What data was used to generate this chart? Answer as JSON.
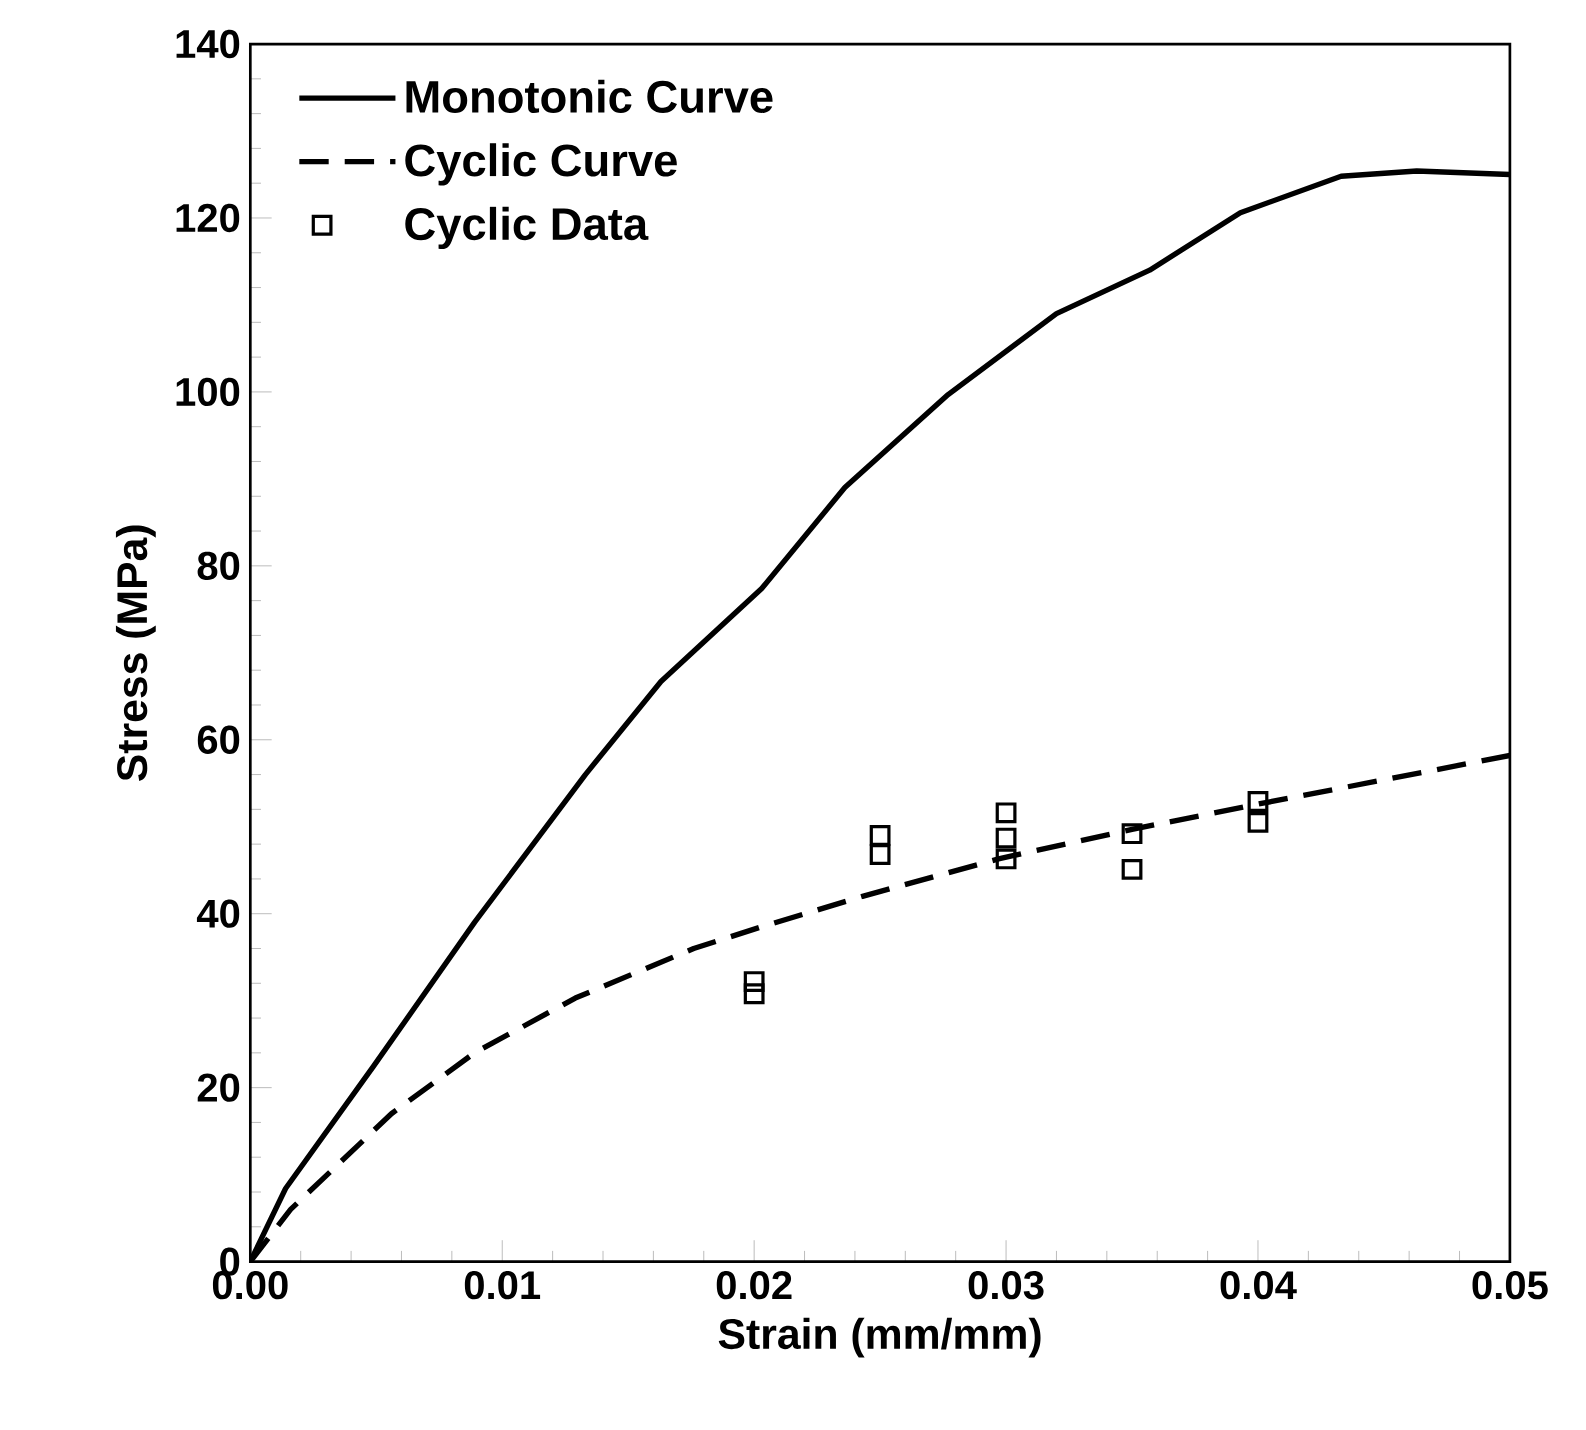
{
  "chart_data": {
    "type": "line",
    "xlabel": "Strain (mm/mm)",
    "ylabel": "Stress (MPa)",
    "xlim": [
      0,
      0.05
    ],
    "ylim": [
      0,
      140
    ],
    "xticks": [
      {
        "value": 0,
        "label": "0.00"
      },
      {
        "value": 0.01,
        "label": "0.01"
      },
      {
        "value": 0.02,
        "label": "0.02"
      },
      {
        "value": 0.03,
        "label": "0.03"
      },
      {
        "value": 0.04,
        "label": "0.04"
      },
      {
        "value": 0.05,
        "label": "0.05"
      }
    ],
    "yticks": [
      0,
      20,
      40,
      60,
      80,
      100,
      120,
      140
    ],
    "legend": "top left",
    "grid": false,
    "series": [
      {
        "name": "Monotonic Curve",
        "color": "#000000",
        "line_style": "solid",
        "x": [
          0,
          0.0014,
          0.0049,
          0.0089,
          0.0133,
          0.0163,
          0.0203,
          0.0236,
          0.0277,
          0.032,
          0.0357,
          0.0393,
          0.0433,
          0.0463,
          0.05
        ],
        "values": [
          0,
          8.4,
          22.5,
          39,
          56,
          66.7,
          77.4,
          89,
          99.7,
          109,
          114,
          120.6,
          124.8,
          125.4,
          125
        ]
      },
      {
        "name": "Cyclic Curve",
        "color": "#000000",
        "line_style": "dashed",
        "x": [
          0,
          0.0016,
          0.0056,
          0.0089,
          0.0129,
          0.0176,
          0.0203,
          0.0243,
          0.0297,
          0.035,
          0.04,
          0.05
        ],
        "values": [
          0,
          6,
          17,
          24,
          30.3,
          36,
          38.5,
          42,
          46.3,
          49.7,
          52.6,
          58.2
        ]
      },
      {
        "name": "Cyclic Data",
        "type": "scatter",
        "color": "#000000",
        "marker": "square",
        "x": [
          0.02,
          0.02,
          0.025,
          0.025,
          0.03,
          0.03,
          0.03,
          0.035,
          0.035,
          0.04,
          0.04
        ],
        "values": [
          32.2,
          30.8,
          49,
          46.8,
          51.6,
          48.7,
          46.3,
          49.2,
          45.1,
          52.9,
          50.5
        ]
      }
    ]
  }
}
